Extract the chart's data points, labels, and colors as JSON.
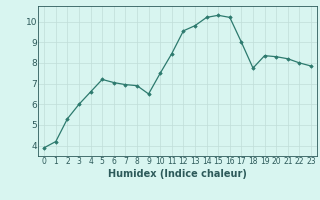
{
  "x": [
    0,
    1,
    2,
    3,
    4,
    5,
    6,
    7,
    8,
    9,
    10,
    11,
    12,
    13,
    14,
    15,
    16,
    17,
    18,
    19,
    20,
    21,
    22,
    23
  ],
  "y": [
    3.9,
    4.2,
    5.3,
    6.0,
    6.6,
    7.2,
    7.05,
    6.95,
    6.9,
    6.5,
    7.5,
    8.45,
    9.55,
    9.8,
    10.2,
    10.3,
    10.2,
    9.0,
    7.75,
    8.35,
    8.3,
    8.2,
    8.0,
    7.85
  ],
  "xlim": [
    -0.5,
    23.5
  ],
  "ylim": [
    3.5,
    10.75
  ],
  "yticks": [
    4,
    5,
    6,
    7,
    8,
    9,
    10
  ],
  "xticks": [
    0,
    1,
    2,
    3,
    4,
    5,
    6,
    7,
    8,
    9,
    10,
    11,
    12,
    13,
    14,
    15,
    16,
    17,
    18,
    19,
    20,
    21,
    22,
    23
  ],
  "xlabel": "Humidex (Indice chaleur)",
  "line_color": "#2d7a6e",
  "marker": "D",
  "marker_size": 1.8,
  "bg_color": "#d8f5f0",
  "grid_color": "#c0ddd8",
  "axis_color": "#2d5a5a",
  "xlabel_fontsize": 7.0,
  "tick_fontsize": 5.5,
  "ytick_fontsize": 6.5,
  "linewidth": 0.9
}
